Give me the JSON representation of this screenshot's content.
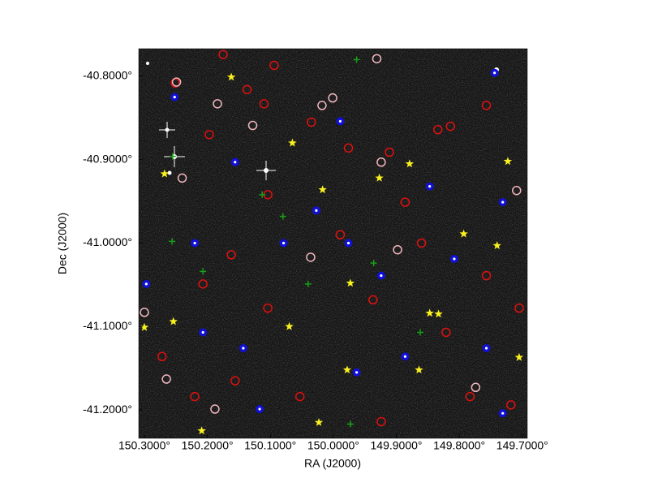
{
  "chart_data": {
    "type": "scatter",
    "x_label": "RA (J2000)",
    "y_label": "Dec (J2000)",
    "xlim": [
      150.309,
      149.692
    ],
    "ylim": [
      -41.234,
      -40.767
    ],
    "xticks": [
      {
        "value": 150.3,
        "label": "150.3000°"
      },
      {
        "value": 150.2,
        "label": "150.2000°"
      },
      {
        "value": 150.1,
        "label": "150.1000°"
      },
      {
        "value": 150.0,
        "label": "150.0000°"
      },
      {
        "value": 149.9,
        "label": "149.9000°"
      },
      {
        "value": 149.8,
        "label": "149.8000°"
      },
      {
        "value": 149.7,
        "label": "149.7000°"
      }
    ],
    "yticks": [
      {
        "value": -40.8,
        "label": "-40.8000°"
      },
      {
        "value": -40.9,
        "label": "-40.9000°"
      },
      {
        "value": -41.0,
        "label": "-41.0000°"
      },
      {
        "value": -41.1,
        "label": "-41.1000°"
      },
      {
        "value": -41.2,
        "label": "-41.2000°"
      }
    ],
    "series": [
      {
        "marker": "circle",
        "color": "#e01010",
        "x": [
          150.175,
          150.094,
          150.251,
          150.137,
          150.11,
          150.035,
          150.197,
          149.976,
          149.911,
          149.814,
          149.757,
          150.104,
          150.162,
          149.989,
          149.86,
          149.757,
          149.937,
          150.104,
          149.821,
          150.156,
          150.22,
          150.053,
          149.924,
          149.783,
          149.718,
          150.272,
          149.705,
          149.886,
          150.207,
          149.834
        ],
        "y": [
          -40.774,
          -40.787,
          -40.808,
          -40.816,
          -40.833,
          -40.855,
          -40.87,
          -40.886,
          -40.891,
          -40.86,
          -40.835,
          -40.942,
          -41.014,
          -40.99,
          -41.0,
          -41.039,
          -41.068,
          -41.078,
          -41.107,
          -41.165,
          -41.184,
          -41.184,
          -41.214,
          -41.184,
          -41.194,
          -41.136,
          -41.078,
          -40.951,
          -41.049,
          -40.864
        ]
      },
      {
        "marker": "circle",
        "color": "#f2b8c0",
        "x": [
          150.184,
          150.249,
          150.001,
          149.931,
          150.3,
          150.265,
          150.188,
          150.036,
          149.898,
          149.774,
          149.709,
          150.128,
          150.018,
          149.924,
          150.24
        ],
        "y": [
          -40.833,
          -40.807,
          -40.826,
          -40.779,
          -41.083,
          -41.163,
          -41.199,
          -41.017,
          -41.008,
          -41.173,
          -40.937,
          -40.859,
          -40.835,
          -40.903,
          -40.922
        ]
      },
      {
        "marker": "dot",
        "color": "#1010d8",
        "x": [
          150.252,
          150.22,
          150.207,
          150.143,
          150.027,
          149.976,
          149.924,
          149.847,
          149.808,
          149.744,
          149.731,
          150.297,
          150.079,
          149.963,
          149.886,
          149.757,
          150.117,
          149.731,
          149.989,
          150.156
        ],
        "y": [
          -40.825,
          -41.0,
          -41.107,
          -41.126,
          -40.961,
          -41.0,
          -41.039,
          -40.932,
          -41.019,
          -40.796,
          -40.951,
          -41.049,
          -41.0,
          -41.155,
          -41.136,
          -41.126,
          -41.199,
          -41.204,
          -40.854,
          -40.903
        ]
      },
      {
        "marker": "cross",
        "color": "#18a018",
        "x": [
          149.963,
          150.255,
          150.113,
          150.08,
          150.207,
          149.862,
          149.973,
          150.256,
          149.936,
          150.04
        ],
        "y": [
          -40.78,
          -40.896,
          -40.942,
          -40.968,
          -41.034,
          -41.107,
          -41.217,
          -40.998,
          -41.024,
          -41.049
        ]
      },
      {
        "marker": "star",
        "color": "#f8f020",
        "x": [
          150.162,
          150.065,
          150.268,
          150.017,
          149.927,
          149.879,
          149.723,
          149.793,
          149.74,
          149.973,
          150.3,
          150.254,
          150.07,
          149.847,
          149.833,
          149.978,
          149.864,
          149.705,
          150.023,
          150.209
        ],
        "y": [
          -40.801,
          -40.88,
          -40.917,
          -40.936,
          -40.922,
          -40.905,
          -40.902,
          -40.989,
          -41.003,
          -41.048,
          -41.101,
          -41.094,
          -41.1,
          -41.084,
          -41.085,
          -41.152,
          -41.152,
          -41.137,
          -41.215,
          -41.225
        ]
      }
    ]
  }
}
